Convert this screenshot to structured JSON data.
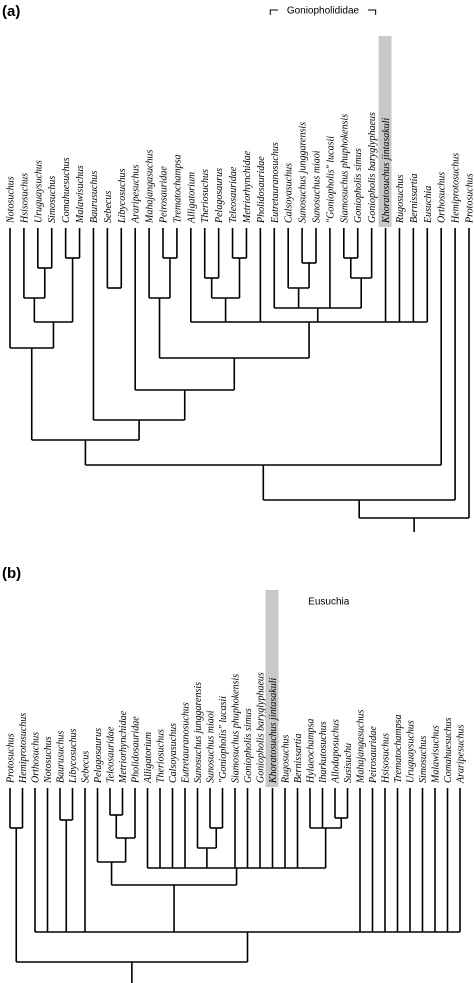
{
  "panel_a": {
    "label": "(a)",
    "clade_label": "Goniopholididae",
    "taxa": [
      "Notosuchus",
      "Hsisosuchus",
      "Uruguaysuchus",
      "Simosuchus",
      "Comahuesuchus",
      "Malawisuchus",
      "Baurusuchus",
      "Sebecus",
      "Libycosuchus",
      "Araripesuchus",
      "Mahajangasuchus",
      "Peirosauridae",
      "Trematochampsa",
      "Alligatorium",
      "Theriosuchus",
      "Pelagosaurus",
      "Teleosauridae",
      "Metriorhynchidae",
      "Pholidosauridae",
      "Eutretauranosuchus",
      "Calsoyasuchus",
      "Sunosuchus junggarensis",
      "Sunosuchus miaoi",
      "\"Goniopholis\" lucasii",
      "Siamosuchus phuphokensis",
      "Goniopholis simus",
      "Goniopholis baryglyphaeus",
      "Khoratosuchus jintasakuli",
      "Rugosuchus",
      "Bernissartia",
      "Eusuchia",
      "Orthosuchus",
      "Hemiprotosuchus",
      "Protosuchus"
    ],
    "highlight": "Khoratosuchus jintasakuli"
  },
  "panel_b": {
    "label": "(b)",
    "clade_label": "Eusuchia",
    "taxa": [
      "Protosuchus",
      "Hemiprotosuchus",
      "Orthosuchus",
      "Notosuchus",
      "Baurusuchus",
      "Libycosuchus",
      "Sebecus",
      "Pelagosaurus",
      "Teleosauridae",
      "Metriorhynchidae",
      "Pholidosauridae",
      "Alligatorium",
      "Theriosuchus",
      "Calsoyasuchus",
      "Eutretauranosuchus",
      "Sunosuchus junggarensis",
      "Sunosuchus miaoi",
      "\"Goniopholis\" lucasii",
      "Siamosuchus phuphokensis",
      "Goniopholis simus",
      "Goniopholis baryglyphaeus",
      "Khoratosuchus jintasakuli",
      "Rugosuchus",
      "Bernissartia",
      "Hylaeochampsa",
      "Iharkutosuchus",
      "Allodaposuchus",
      "Susisuchu",
      "Mahajangasuchus",
      "Peirosauridae",
      "Hsisosuchus",
      "Trematochampsa",
      "Uruguaysuchus",
      "Simosuchus",
      "Malawisuchus",
      "Comahuesuchus",
      "Araripesuchus"
    ],
    "highlight": "Khoratosuchus jintasakuli"
  }
}
